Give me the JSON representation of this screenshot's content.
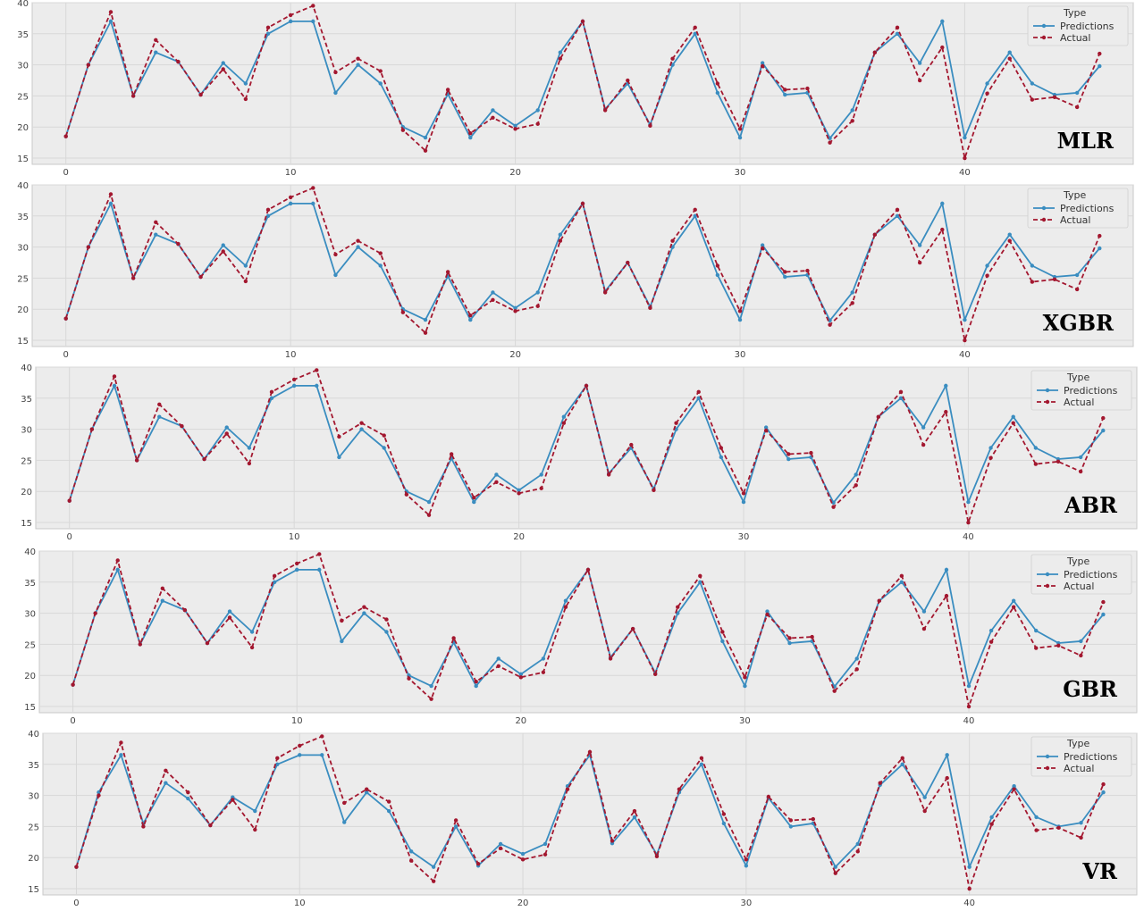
{
  "colors": {
    "predictions": "#3a8dc0",
    "actual": "#a3172f",
    "plot_bg": "#ececec",
    "grid": "#d8d8d8"
  },
  "legend": {
    "title": "Type",
    "predictions_label": "Predictions",
    "actual_label": "Actual"
  },
  "chart_data": [
    {
      "type": "line",
      "title": "MLR",
      "x": [
        0,
        1,
        2,
        3,
        4,
        5,
        6,
        7,
        8,
        9,
        10,
        11,
        12,
        13,
        14,
        15,
        16,
        17,
        18,
        19,
        20,
        21,
        22,
        23,
        24,
        25,
        26,
        27,
        28,
        29,
        30,
        31,
        32,
        33,
        34,
        35,
        36,
        37,
        38,
        39,
        40,
        41,
        42,
        43,
        44,
        45,
        46
      ],
      "xticks": [
        0,
        10,
        20,
        30,
        40
      ],
      "yticks": [
        15,
        20,
        25,
        30,
        35,
        40
      ],
      "xlim": [
        -1.5,
        47.5
      ],
      "ylim": [
        14,
        40
      ],
      "grid": true,
      "legend_position": "top-right",
      "series": [
        {
          "name": "Predictions",
          "values": [
            18.5,
            30,
            37,
            25,
            32,
            30.5,
            25.2,
            30.3,
            27,
            35,
            37,
            37,
            25.5,
            30,
            27,
            20,
            18.3,
            25.3,
            18.3,
            22.7,
            20.2,
            22.7,
            32,
            37,
            22.9,
            27,
            20.4,
            30,
            35,
            25.5,
            18.3,
            30.3,
            25.2,
            25.5,
            18.2,
            22.7,
            32,
            35,
            30.3,
            37,
            18.3,
            27,
            32,
            27,
            25.2,
            25.5,
            29.8
          ]
        },
        {
          "name": "Actual",
          "values": [
            18.5,
            30,
            38.5,
            25,
            34,
            30.5,
            25.2,
            29.3,
            24.5,
            36,
            38,
            39.5,
            28.8,
            31,
            29,
            19.5,
            16.2,
            26,
            19,
            21.5,
            19.7,
            20.5,
            31,
            37,
            22.7,
            27.5,
            20.2,
            31,
            36,
            27,
            19.7,
            29.8,
            26,
            26.2,
            17.5,
            21,
            32,
            36,
            27.5,
            32.8,
            15,
            25.4,
            31,
            24.4,
            24.8,
            23.2,
            31.8
          ]
        }
      ]
    },
    {
      "type": "line",
      "title": "XGBR",
      "x": [
        0,
        1,
        2,
        3,
        4,
        5,
        6,
        7,
        8,
        9,
        10,
        11,
        12,
        13,
        14,
        15,
        16,
        17,
        18,
        19,
        20,
        21,
        22,
        23,
        24,
        25,
        26,
        27,
        28,
        29,
        30,
        31,
        32,
        33,
        34,
        35,
        36,
        37,
        38,
        39,
        40,
        41,
        42,
        43,
        44,
        45,
        46
      ],
      "xticks": [
        0,
        10,
        20,
        30,
        40
      ],
      "yticks": [
        15,
        20,
        25,
        30,
        35,
        40
      ],
      "xlim": [
        -1.5,
        47.5
      ],
      "ylim": [
        14,
        40
      ],
      "grid": true,
      "legend_position": "top-right",
      "series": [
        {
          "name": "Predictions",
          "values": [
            18.5,
            30,
            37,
            25,
            32,
            30.5,
            25.2,
            30.3,
            27,
            35,
            37,
            37,
            25.5,
            30,
            27,
            20,
            18.3,
            25.3,
            18.3,
            22.7,
            20.2,
            22.7,
            32,
            37,
            22.9,
            27.5,
            20.4,
            30,
            35,
            25.5,
            18.3,
            30.3,
            25.2,
            25.5,
            18.2,
            22.7,
            32,
            35,
            30.3,
            37,
            18.3,
            27,
            32,
            27,
            25.2,
            25.5,
            29.8
          ]
        },
        {
          "name": "Actual",
          "values": [
            18.5,
            30,
            38.5,
            25,
            34,
            30.5,
            25.2,
            29.3,
            24.5,
            36,
            38,
            39.5,
            28.8,
            31,
            29,
            19.5,
            16.2,
            26,
            19,
            21.5,
            19.7,
            20.5,
            31,
            37,
            22.7,
            27.5,
            20.2,
            31,
            36,
            27,
            19.7,
            29.8,
            26,
            26.2,
            17.5,
            21,
            32,
            36,
            27.5,
            32.8,
            15,
            25.4,
            31,
            24.4,
            24.8,
            23.2,
            31.8
          ]
        }
      ]
    },
    {
      "type": "line",
      "title": "ABR",
      "x": [
        0,
        1,
        2,
        3,
        4,
        5,
        6,
        7,
        8,
        9,
        10,
        11,
        12,
        13,
        14,
        15,
        16,
        17,
        18,
        19,
        20,
        21,
        22,
        23,
        24,
        25,
        26,
        27,
        28,
        29,
        30,
        31,
        32,
        33,
        34,
        35,
        36,
        37,
        38,
        39,
        40,
        41,
        42,
        43,
        44,
        45,
        46
      ],
      "xticks": [
        0,
        10,
        20,
        30,
        40
      ],
      "yticks": [
        15,
        20,
        25,
        30,
        35,
        40
      ],
      "xlim": [
        -1.5,
        47.5
      ],
      "ylim": [
        14,
        40
      ],
      "grid": true,
      "legend_position": "top-right",
      "series": [
        {
          "name": "Predictions",
          "values": [
            18.5,
            30,
            37,
            25,
            32,
            30.5,
            25.2,
            30.3,
            27,
            35,
            37,
            37,
            25.5,
            30,
            27,
            20,
            18.3,
            25.3,
            18.3,
            22.7,
            20.2,
            22.7,
            32,
            37,
            22.9,
            27,
            20.4,
            30,
            35,
            25.5,
            18.3,
            30.3,
            25.2,
            25.5,
            18.2,
            22.7,
            32,
            35,
            30.3,
            37,
            18.3,
            27,
            32,
            27,
            25.2,
            25.5,
            29.8
          ]
        },
        {
          "name": "Actual",
          "values": [
            18.5,
            30,
            38.5,
            25,
            34,
            30.5,
            25.2,
            29.3,
            24.5,
            36,
            38,
            39.5,
            28.8,
            31,
            29,
            19.5,
            16.2,
            26,
            19,
            21.5,
            19.7,
            20.5,
            31,
            37,
            22.7,
            27.5,
            20.2,
            31,
            36,
            27,
            19.7,
            29.8,
            26,
            26.2,
            17.5,
            21,
            32,
            36,
            27.5,
            32.8,
            15,
            25.4,
            31,
            24.4,
            24.8,
            23.2,
            31.8
          ]
        }
      ]
    },
    {
      "type": "line",
      "title": "GBR",
      "x": [
        0,
        1,
        2,
        3,
        4,
        5,
        6,
        7,
        8,
        9,
        10,
        11,
        12,
        13,
        14,
        15,
        16,
        17,
        18,
        19,
        20,
        21,
        22,
        23,
        24,
        25,
        26,
        27,
        28,
        29,
        30,
        31,
        32,
        33,
        34,
        35,
        36,
        37,
        38,
        39,
        40,
        41,
        42,
        43,
        44,
        45,
        46
      ],
      "xticks": [
        0,
        10,
        20,
        30,
        40
      ],
      "yticks": [
        15,
        20,
        25,
        30,
        35,
        40
      ],
      "xlim": [
        -1.5,
        47.5
      ],
      "ylim": [
        14,
        40
      ],
      "grid": true,
      "legend_position": "top-right",
      "series": [
        {
          "name": "Predictions",
          "values": [
            18.5,
            30,
            37,
            25,
            32,
            30.5,
            25.2,
            30.3,
            27,
            35,
            37,
            37,
            25.5,
            30,
            27,
            20,
            18.3,
            25.3,
            18.3,
            22.7,
            20.2,
            22.7,
            32,
            37,
            22.9,
            27.5,
            20.4,
            30,
            35,
            25.5,
            18.3,
            30.3,
            25.2,
            25.5,
            18.2,
            22.7,
            32,
            35,
            30.3,
            37,
            18.3,
            27.2,
            32,
            27.2,
            25.2,
            25.5,
            29.8
          ]
        },
        {
          "name": "Actual",
          "values": [
            18.5,
            30,
            38.5,
            25,
            34,
            30.5,
            25.2,
            29.3,
            24.5,
            36,
            38,
            39.5,
            28.8,
            31,
            29,
            19.5,
            16.2,
            26,
            19,
            21.5,
            19.7,
            20.5,
            31,
            37,
            22.7,
            27.5,
            20.2,
            31,
            36,
            27,
            19.7,
            29.8,
            26,
            26.2,
            17.5,
            21,
            32,
            36,
            27.5,
            32.8,
            15,
            25.4,
            31,
            24.4,
            24.8,
            23.2,
            31.8
          ]
        }
      ]
    },
    {
      "type": "line",
      "title": "VR",
      "x": [
        0,
        1,
        2,
        3,
        4,
        5,
        6,
        7,
        8,
        9,
        10,
        11,
        12,
        13,
        14,
        15,
        16,
        17,
        18,
        19,
        20,
        21,
        22,
        23,
        24,
        25,
        26,
        27,
        28,
        29,
        30,
        31,
        32,
        33,
        34,
        35,
        36,
        37,
        38,
        39,
        40,
        41,
        42,
        43,
        44,
        45,
        46
      ],
      "xticks": [
        0,
        10,
        20,
        30,
        40
      ],
      "yticks": [
        15,
        20,
        25,
        30,
        35,
        40
      ],
      "xlim": [
        -1.5,
        47.5
      ],
      "ylim": [
        14,
        40
      ],
      "grid": true,
      "legend_position": "top-right",
      "series": [
        {
          "name": "Predictions",
          "values": [
            18.5,
            30.5,
            36.5,
            25.5,
            32,
            29.5,
            25.2,
            29.7,
            27.5,
            35,
            36.5,
            36.5,
            25.7,
            30.5,
            27.5,
            21,
            18.5,
            25,
            18.7,
            22.2,
            20.6,
            22.2,
            31.5,
            36.5,
            22.3,
            26.5,
            20.5,
            30.5,
            35,
            25.5,
            18.7,
            29.6,
            25,
            25.5,
            18.5,
            22.2,
            31.7,
            35,
            29.7,
            36.5,
            18.5,
            26.5,
            31.5,
            26.5,
            25,
            25.6,
            30.5
          ]
        },
        {
          "name": "Actual",
          "values": [
            18.5,
            30,
            38.5,
            25,
            34,
            30.5,
            25.2,
            29.3,
            24.5,
            36,
            38,
            39.5,
            28.8,
            31,
            29,
            19.5,
            16.2,
            26,
            19,
            21.5,
            19.7,
            20.5,
            31,
            37,
            22.7,
            27.5,
            20.2,
            31,
            36,
            27,
            19.7,
            29.8,
            26,
            26.2,
            17.5,
            21,
            32,
            36,
            27.5,
            32.8,
            15,
            25.4,
            31,
            24.4,
            24.8,
            23.2,
            31.8
          ]
        }
      ]
    }
  ]
}
